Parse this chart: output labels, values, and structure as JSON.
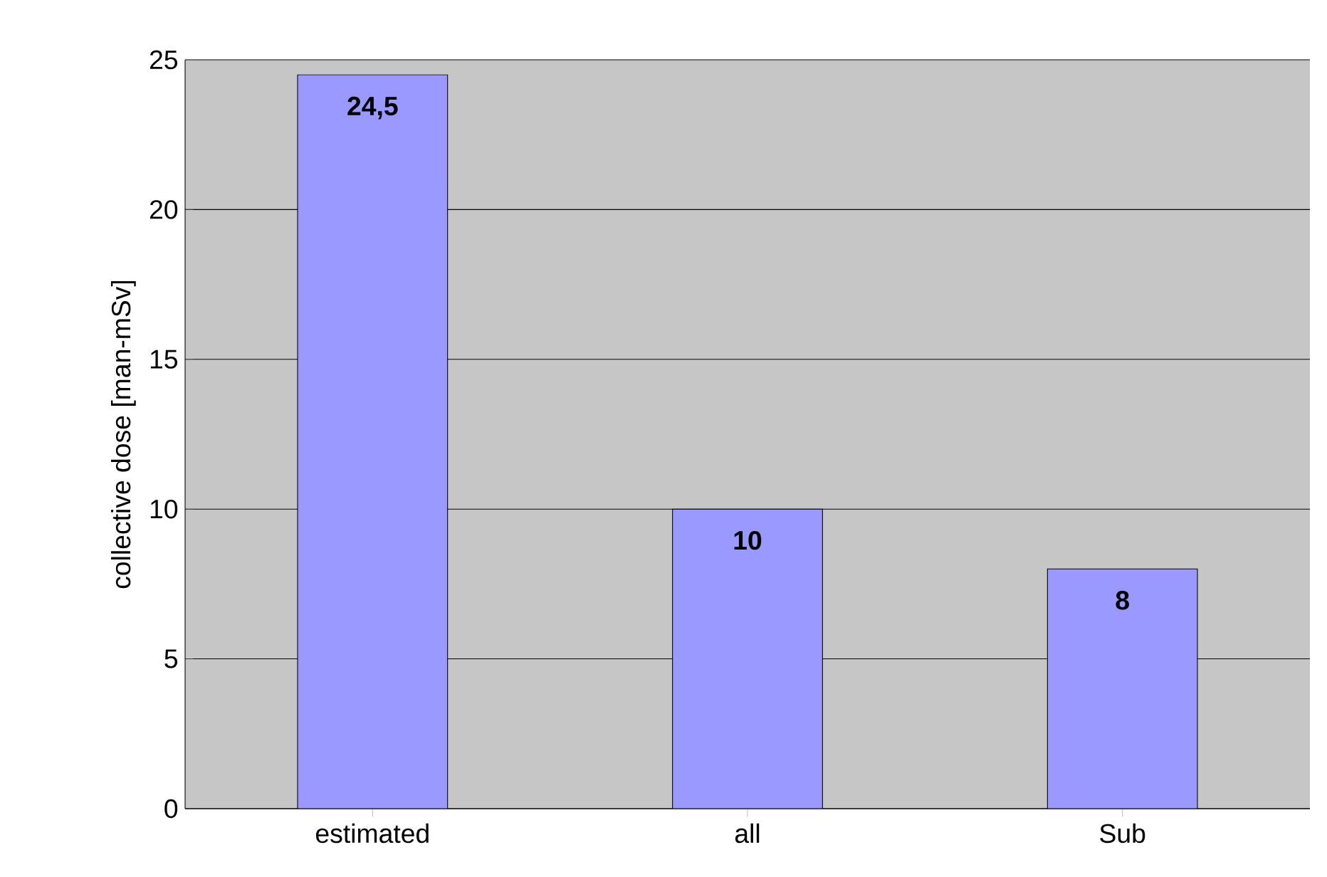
{
  "chart_data": {
    "type": "bar",
    "ylabel": "collective dose [man-mSv]",
    "categories": [
      "estimated",
      "all",
      "Sub"
    ],
    "values": [
      24.5,
      10,
      8
    ],
    "value_labels": [
      "24,5",
      "10",
      "8"
    ],
    "color": "#9999ff",
    "ylim": [
      0,
      25
    ],
    "yticks": [
      0,
      5,
      10,
      15,
      20,
      25
    ],
    "grid": "y"
  }
}
